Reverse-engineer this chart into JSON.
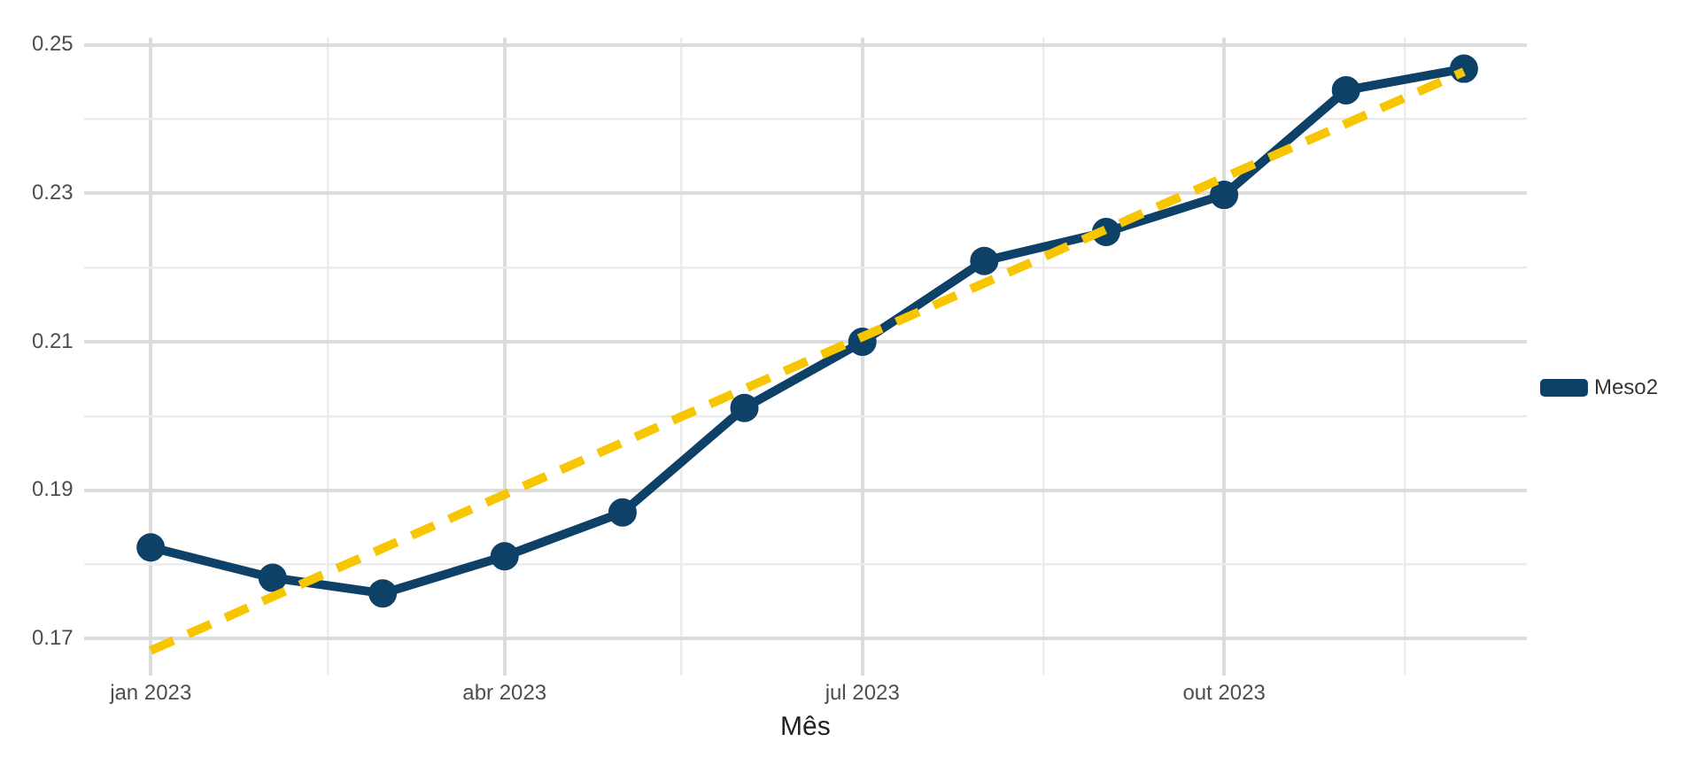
{
  "chart_data": {
    "type": "line",
    "xlabel": "Mês",
    "x": [
      "2023-01",
      "2023-02",
      "2023-03",
      "2023-04",
      "2023-05",
      "2023-06",
      "2023-07",
      "2023-08",
      "2023-09",
      "2023-10",
      "2023-11",
      "2023-12"
    ],
    "series": [
      {
        "name": "Meso2",
        "color": "#0e4168",
        "values": [
          0.1823,
          0.1782,
          0.1761,
          0.1811,
          0.187,
          0.2011,
          0.21,
          0.2209,
          0.2248,
          0.2298,
          0.2439,
          0.2468
        ]
      },
      {
        "type": "line",
        "color": "#f7c600",
        "x": [
          "2023-01",
          "2023-12"
        ],
        "values": [
          0.1684,
          0.2464
        ],
        "line_style": "dashed",
        "marker": "none"
      }
    ],
    "xlim": [
      "2022-12-15",
      "2023-12-17"
    ],
    "xticks": [
      {
        "value": "2023-01",
        "label": "jan 2023"
      },
      {
        "value": "2023-02-15",
        "label": null
      },
      {
        "value": "2023-04",
        "label": "abr 2023"
      },
      {
        "value": "2023-05-16",
        "label": null
      },
      {
        "value": "2023-07",
        "label": "jul 2023"
      },
      {
        "value": "2023-08-16",
        "label": null
      },
      {
        "value": "2023-10",
        "label": "out 2023"
      },
      {
        "value": "2023-11-16",
        "label": null
      }
    ],
    "ylim": [
      0.165,
      0.251
    ],
    "yticks": [
      0.17,
      {
        "value": 0.18,
        "label": null
      },
      0.19,
      {
        "value": 0.2,
        "label": null
      },
      0.21,
      {
        "value": 0.22,
        "label": null
      },
      0.23,
      {
        "value": 0.24,
        "label": null
      },
      0.25
    ],
    "grid": true,
    "legend": "right",
    "marker": "circle",
    "line_style": "solid"
  }
}
